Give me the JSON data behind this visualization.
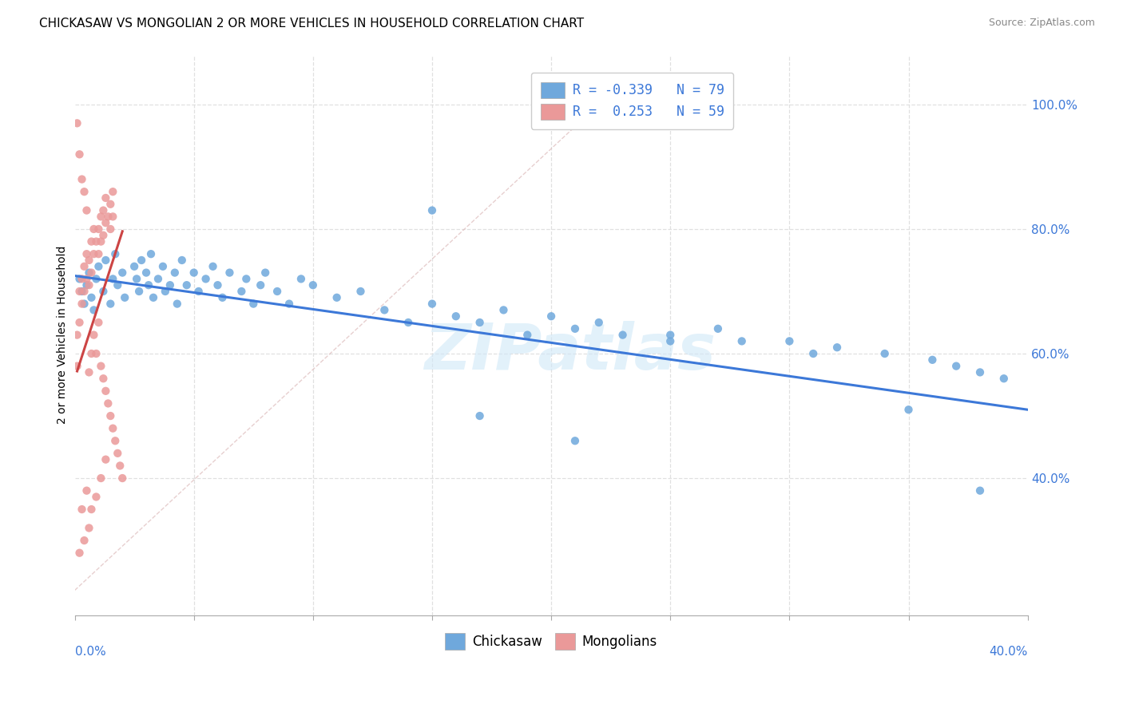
{
  "title": "CHICKASAW VS MONGOLIAN 2 OR MORE VEHICLES IN HOUSEHOLD CORRELATION CHART",
  "source": "Source: ZipAtlas.com",
  "ylabel": "2 or more Vehicles in Household",
  "ytick_labels": [
    "100.0%",
    "80.0%",
    "60.0%",
    "40.0%"
  ],
  "ytick_vals": [
    1.0,
    0.8,
    0.6,
    0.4
  ],
  "xlim": [
    0.0,
    0.4
  ],
  "ylim": [
    0.18,
    1.08
  ],
  "chickasaw_color": "#6fa8dc",
  "mongolian_color": "#ea9999",
  "chickasaw_line_color": "#3c78d8",
  "mongolian_line_color": "#cc4444",
  "ref_line_color": "#ddbbbb",
  "grid_color": "#e0e0e0",
  "watermark": "ZIPatlas",
  "watermark_color": "#d0e8f8",
  "title_fontsize": 11,
  "source_fontsize": 9,
  "ytick_fontsize": 11,
  "legend_r1": "R = -0.339",
  "legend_n1": "N = 79",
  "legend_r2": "R =  0.253",
  "legend_n2": "N = 59",
  "chickasaw_x": [
    0.002,
    0.003,
    0.004,
    0.005,
    0.006,
    0.007,
    0.008,
    0.009,
    0.01,
    0.012,
    0.013,
    0.015,
    0.016,
    0.017,
    0.018,
    0.02,
    0.021,
    0.025,
    0.026,
    0.027,
    0.028,
    0.03,
    0.031,
    0.032,
    0.033,
    0.035,
    0.037,
    0.038,
    0.04,
    0.042,
    0.043,
    0.045,
    0.047,
    0.05,
    0.052,
    0.055,
    0.058,
    0.06,
    0.062,
    0.065,
    0.07,
    0.072,
    0.075,
    0.078,
    0.08,
    0.085,
    0.09,
    0.095,
    0.1,
    0.11,
    0.12,
    0.13,
    0.14,
    0.15,
    0.16,
    0.17,
    0.18,
    0.19,
    0.2,
    0.21,
    0.22,
    0.23,
    0.25,
    0.27,
    0.28,
    0.3,
    0.31,
    0.32,
    0.34,
    0.36,
    0.37,
    0.38,
    0.39,
    0.15,
    0.25,
    0.35,
    0.38,
    0.21,
    0.17
  ],
  "chickasaw_y": [
    0.72,
    0.7,
    0.68,
    0.71,
    0.73,
    0.69,
    0.67,
    0.72,
    0.74,
    0.7,
    0.75,
    0.68,
    0.72,
    0.76,
    0.71,
    0.73,
    0.69,
    0.74,
    0.72,
    0.7,
    0.75,
    0.73,
    0.71,
    0.76,
    0.69,
    0.72,
    0.74,
    0.7,
    0.71,
    0.73,
    0.68,
    0.75,
    0.71,
    0.73,
    0.7,
    0.72,
    0.74,
    0.71,
    0.69,
    0.73,
    0.7,
    0.72,
    0.68,
    0.71,
    0.73,
    0.7,
    0.68,
    0.72,
    0.71,
    0.69,
    0.7,
    0.67,
    0.65,
    0.68,
    0.66,
    0.65,
    0.67,
    0.63,
    0.66,
    0.64,
    0.65,
    0.63,
    0.62,
    0.64,
    0.62,
    0.62,
    0.6,
    0.61,
    0.6,
    0.59,
    0.58,
    0.57,
    0.56,
    0.83,
    0.63,
    0.51,
    0.38,
    0.46,
    0.5
  ],
  "mongolian_x": [
    0.001,
    0.001,
    0.002,
    0.002,
    0.003,
    0.003,
    0.004,
    0.004,
    0.005,
    0.005,
    0.006,
    0.006,
    0.007,
    0.007,
    0.008,
    0.008,
    0.009,
    0.01,
    0.01,
    0.011,
    0.011,
    0.012,
    0.012,
    0.013,
    0.013,
    0.014,
    0.015,
    0.015,
    0.016,
    0.016,
    0.001,
    0.002,
    0.003,
    0.004,
    0.005,
    0.006,
    0.007,
    0.008,
    0.009,
    0.01,
    0.011,
    0.012,
    0.013,
    0.014,
    0.015,
    0.016,
    0.017,
    0.018,
    0.019,
    0.02,
    0.003,
    0.005,
    0.007,
    0.009,
    0.011,
    0.013,
    0.002,
    0.004,
    0.006
  ],
  "mongolian_y": [
    0.58,
    0.63,
    0.65,
    0.7,
    0.68,
    0.72,
    0.7,
    0.74,
    0.72,
    0.76,
    0.71,
    0.75,
    0.73,
    0.78,
    0.76,
    0.8,
    0.78,
    0.76,
    0.8,
    0.78,
    0.82,
    0.79,
    0.83,
    0.81,
    0.85,
    0.82,
    0.8,
    0.84,
    0.82,
    0.86,
    0.97,
    0.92,
    0.88,
    0.86,
    0.83,
    0.57,
    0.6,
    0.63,
    0.6,
    0.65,
    0.58,
    0.56,
    0.54,
    0.52,
    0.5,
    0.48,
    0.46,
    0.44,
    0.42,
    0.4,
    0.35,
    0.38,
    0.35,
    0.37,
    0.4,
    0.43,
    0.28,
    0.3,
    0.32
  ]
}
